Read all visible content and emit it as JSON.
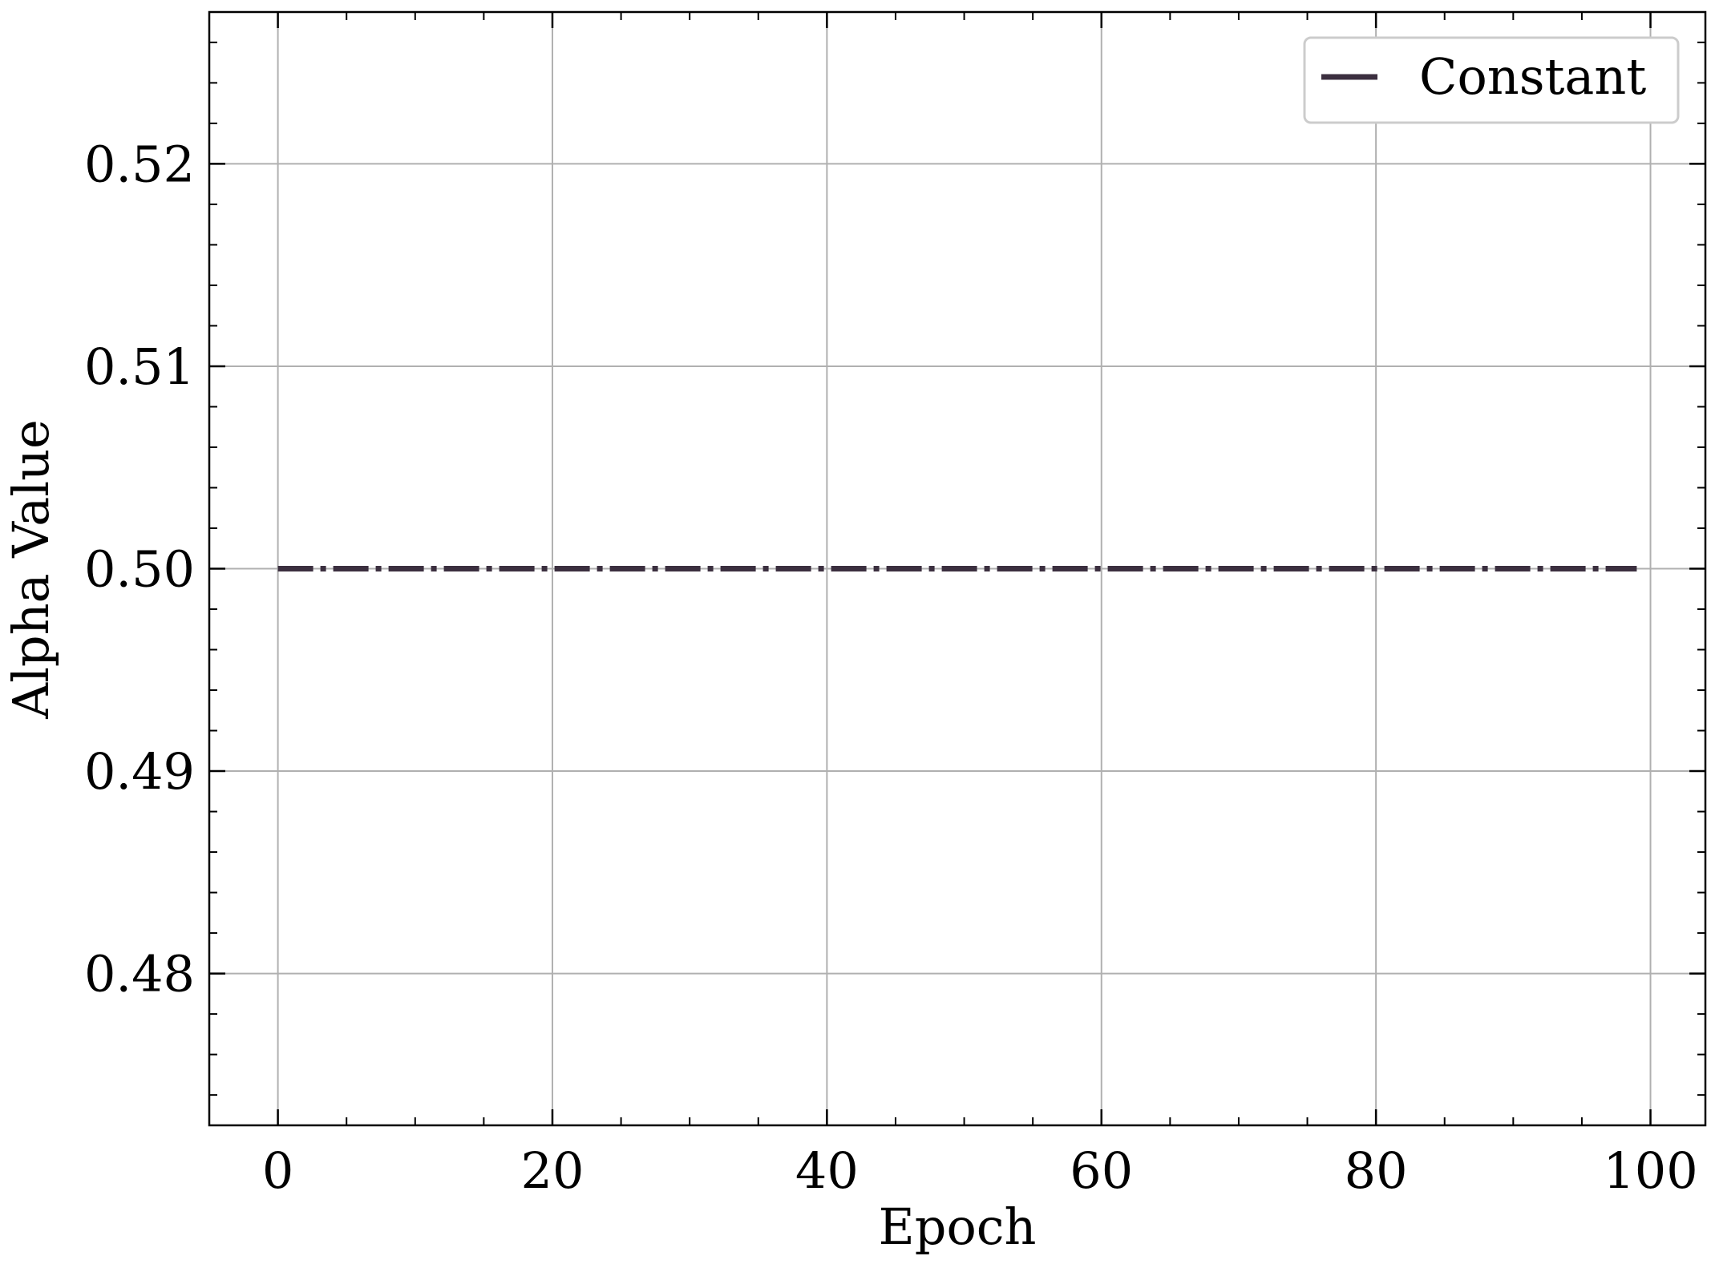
{
  "chart_data": {
    "type": "line",
    "title": "",
    "xlabel": "Epoch",
    "ylabel": "Alpha Value",
    "xlim": [
      -5,
      104
    ],
    "ylim": [
      0.4725,
      0.5275
    ],
    "xticks": [
      0,
      20,
      40,
      60,
      80,
      100
    ],
    "xtick_labels": [
      "0",
      "20",
      "40",
      "60",
      "80",
      "100"
    ],
    "yticks": [
      0.48,
      0.49,
      0.5,
      0.51,
      0.52
    ],
    "ytick_labels": [
      "0.48",
      "0.49",
      "0.50",
      "0.51",
      "0.52"
    ],
    "x_minor_step": 5,
    "y_minor_step": 0.002,
    "grid": true,
    "legend_position": "top-right",
    "series": [
      {
        "name": "Constant",
        "color": "#3b2f3f",
        "line_style": "dash-dot",
        "x_start": 0,
        "x_end": 99,
        "x_step": 1,
        "y_constant": 0.5
      }
    ]
  }
}
